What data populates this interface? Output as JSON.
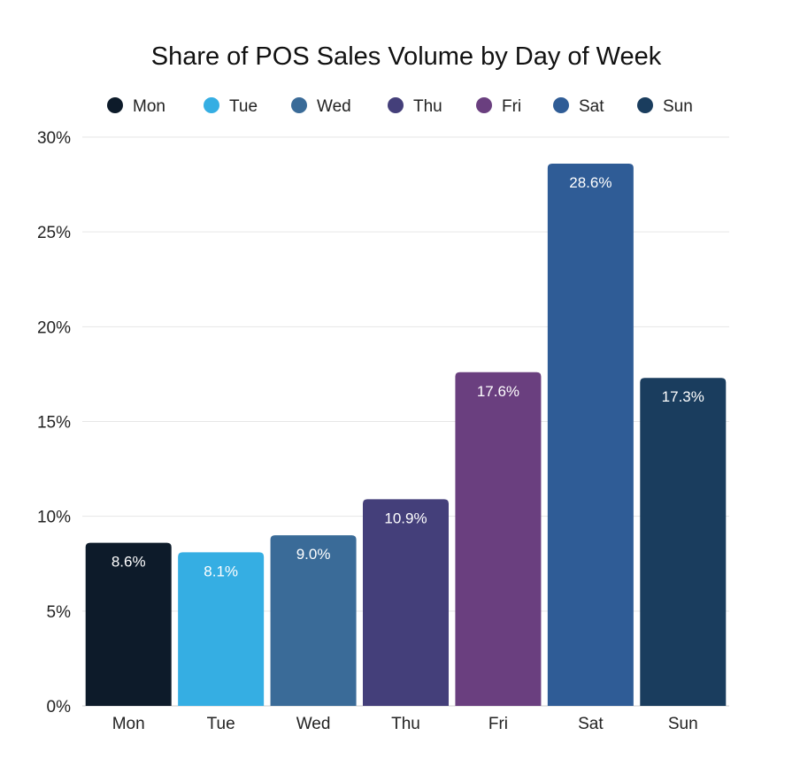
{
  "chart_data": {
    "type": "bar",
    "title": "Share of POS Sales Volume by Day of Week",
    "xlabel": "",
    "ylabel": "",
    "categories": [
      "Mon",
      "Tue",
      "Wed",
      "Thu",
      "Fri",
      "Sat",
      "Sun"
    ],
    "values": [
      8.6,
      8.1,
      9.0,
      10.9,
      17.6,
      28.6,
      17.3
    ],
    "data_labels": [
      "8.6%",
      "8.1%",
      "9.0%",
      "10.9%",
      "17.6%",
      "28.6%",
      "17.3%"
    ],
    "colors": [
      "#0d1b2a",
      "#35aee3",
      "#3a6b98",
      "#443f7a",
      "#6a3f7f",
      "#2f5c96",
      "#1a3d5e"
    ],
    "ylim": [
      0,
      30
    ],
    "yticks": [
      0,
      5,
      10,
      15,
      20,
      25,
      30
    ],
    "ytick_labels": [
      "0%",
      "5%",
      "10%",
      "15%",
      "20%",
      "25%",
      "30%"
    ],
    "legend": {
      "placement": "top-center",
      "entries": [
        "Mon",
        "Tue",
        "Wed",
        "Thu",
        "Fri",
        "Sat",
        "Sun"
      ]
    },
    "grid": true
  }
}
